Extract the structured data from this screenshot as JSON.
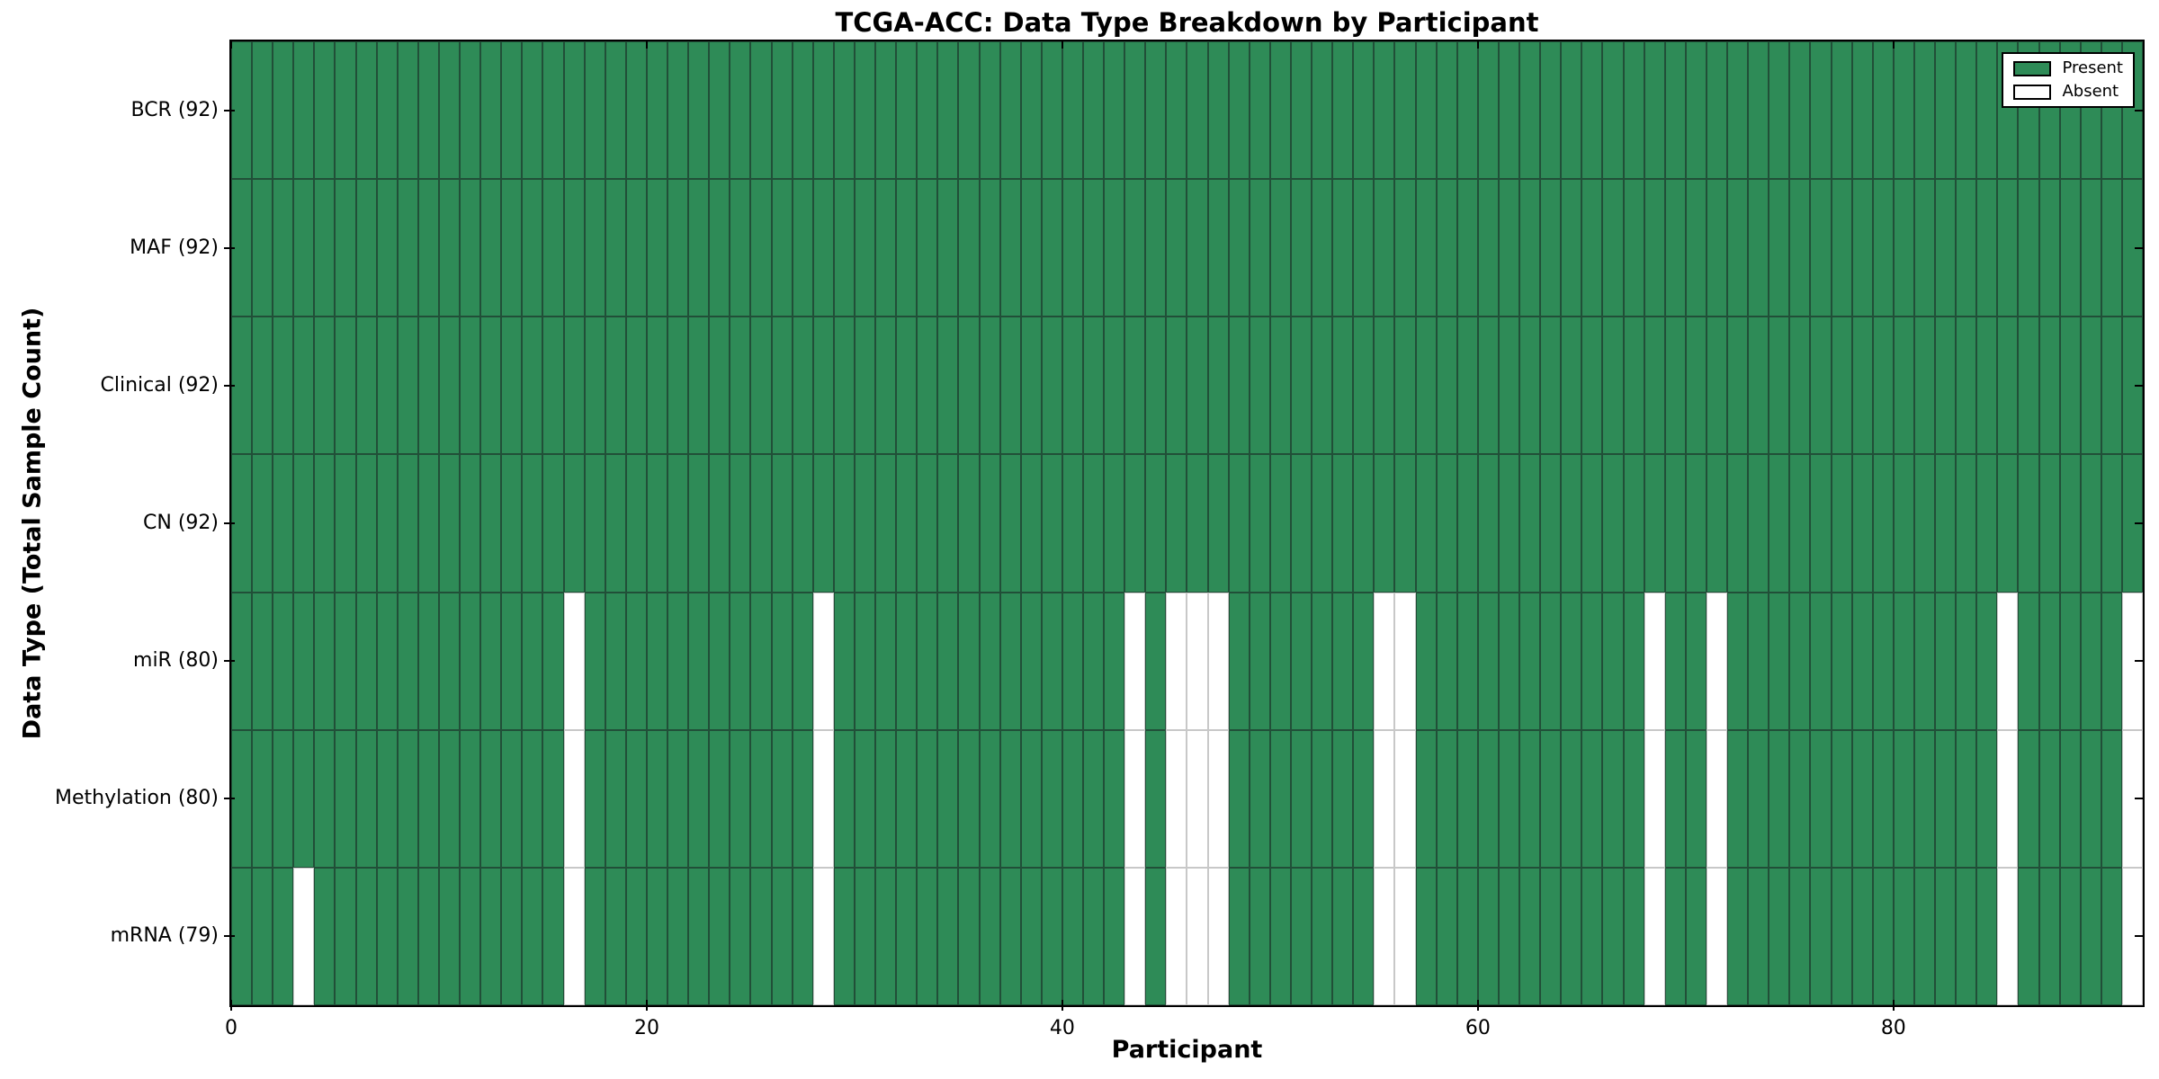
{
  "chart_data": {
    "type": "heatmap",
    "title": "TCGA-ACC: Data Type Breakdown by Participant",
    "xlabel": "Participant",
    "ylabel": "Data Type (Total Sample Count)",
    "n_participants": 92,
    "x_ticks": [
      0,
      20,
      40,
      60,
      80
    ],
    "x_tick_labels": [
      "0",
      "20",
      "40",
      "60",
      "80"
    ],
    "rows": [
      {
        "name": "BCR",
        "label": "BCR (92)",
        "total": 92,
        "absent_participants": []
      },
      {
        "name": "MAF",
        "label": "MAF (92)",
        "total": 92,
        "absent_participants": []
      },
      {
        "name": "Clinical",
        "label": "Clinical (92)",
        "total": 92,
        "absent_participants": []
      },
      {
        "name": "CN",
        "label": "CN (92)",
        "total": 92,
        "absent_participants": []
      },
      {
        "name": "miR",
        "label": "miR (80)",
        "total": 80,
        "absent_participants": [
          16,
          28,
          43,
          45,
          46,
          47,
          55,
          56,
          68,
          71,
          85,
          91
        ]
      },
      {
        "name": "Methylation",
        "label": "Methylation (80)",
        "total": 80,
        "absent_participants": [
          16,
          28,
          43,
          45,
          46,
          47,
          55,
          56,
          68,
          71,
          85,
          91
        ]
      },
      {
        "name": "mRNA",
        "label": "mRNA (79)",
        "total": 79,
        "absent_participants": [
          3,
          16,
          28,
          43,
          45,
          46,
          47,
          55,
          56,
          68,
          71,
          85,
          91
        ]
      }
    ],
    "legend": {
      "position": "upper right",
      "items": [
        {
          "label": "Present",
          "color": "#2e8b57"
        },
        {
          "label": "Absent",
          "color": "#ffffff"
        }
      ]
    },
    "colors": {
      "present_fill": "#2e8b57",
      "present_edge": "#214f38",
      "absent_fill": "#ffffff",
      "absent_edge": "#c8c8c8",
      "axis": "#000000"
    },
    "grid": false
  }
}
